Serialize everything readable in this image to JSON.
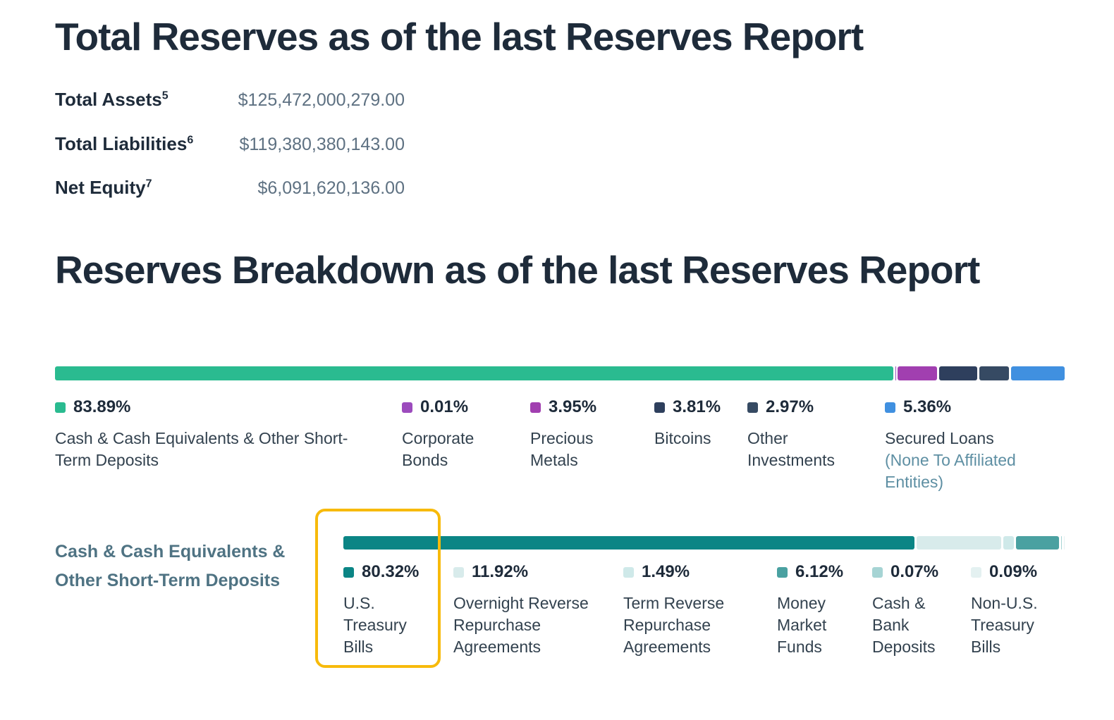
{
  "totals": {
    "title": "Total Reserves as of the last Reserves Report",
    "rows": [
      {
        "label": "Total Assets",
        "sup": "5",
        "value": "$125,472,000,279.00"
      },
      {
        "label": "Total Liabilities",
        "sup": "6",
        "value": "$119,380,380,143.00"
      },
      {
        "label": "Net Equity",
        "sup": "7",
        "value": "$6,091,620,136.00"
      }
    ]
  },
  "breakdown": {
    "title": "Reserves Breakdown as of the last Reserves Report",
    "legend": [
      {
        "pct": "83.89%",
        "label": "Cash & Cash Equivalents & Other Short-Term Deposits"
      },
      {
        "pct": "0.01%",
        "label": "Corporate Bonds"
      },
      {
        "pct": "3.95%",
        "label": "Precious Metals"
      },
      {
        "pct": "3.81%",
        "label": "Bitcoins"
      },
      {
        "pct": "2.97%",
        "label": "Other Investments"
      },
      {
        "pct": "5.36%",
        "label": "Secured Loans",
        "note": "(None To Affiliated Entities)"
      }
    ]
  },
  "cash_section": {
    "label": "Cash & Cash Equivalents & Other Short-Term Deposits",
    "legend": [
      {
        "pct": "80.32%",
        "label": "U.S. Treasury Bills"
      },
      {
        "pct": "11.92%",
        "label": "Overnight Reverse Repurchase Agreements"
      },
      {
        "pct": "1.49%",
        "label": "Term Reverse Repurchase Agreements"
      },
      {
        "pct": "6.12%",
        "label": "Money Market Funds"
      },
      {
        "pct": "0.07%",
        "label": "Cash & Bank Deposits"
      },
      {
        "pct": "0.09%",
        "label": "Non-U.S. Treasury Bills"
      }
    ]
  },
  "chart_data": [
    {
      "type": "bar",
      "subtype": "stacked-horizontal",
      "title": "Reserves Breakdown as of the last Reserves Report",
      "unit": "%",
      "categories": [
        "Cash & Cash Equivalents & Other Short-Term Deposits",
        "Corporate Bonds",
        "Precious Metals",
        "Bitcoins",
        "Other Investments",
        "Secured Loans (None To Affiliated Entities)"
      ],
      "values": [
        83.89,
        0.01,
        3.95,
        3.81,
        2.97,
        5.36
      ],
      "colors": [
        "#2abb90",
        "#9c4bbd",
        "#a13fb0",
        "#2e3f5d",
        "#364a63",
        "#4090e0"
      ],
      "legend_position": "below",
      "grid": false
    },
    {
      "type": "bar",
      "subtype": "stacked-horizontal",
      "title": "Cash & Cash Equivalents & Other Short-Term Deposits",
      "unit": "%",
      "categories": [
        "U.S. Treasury Bills",
        "Overnight Reverse Repurchase Agreements",
        "Term Reverse Repurchase Agreements",
        "Money Market Funds",
        "Cash & Bank Deposits",
        "Non-U.S. Treasury Bills"
      ],
      "values": [
        80.32,
        11.92,
        1.49,
        6.12,
        0.07,
        0.09
      ],
      "colors": [
        "#0b8585",
        "#d8ebeb",
        "#cfe9e9",
        "#4aa1a1",
        "#a6d4d4",
        "#e4f1f1"
      ],
      "legend_position": "below",
      "grid": false
    }
  ],
  "highlight": {
    "target": "U.S. Treasury Bills",
    "color": "#f7ba0b"
  }
}
